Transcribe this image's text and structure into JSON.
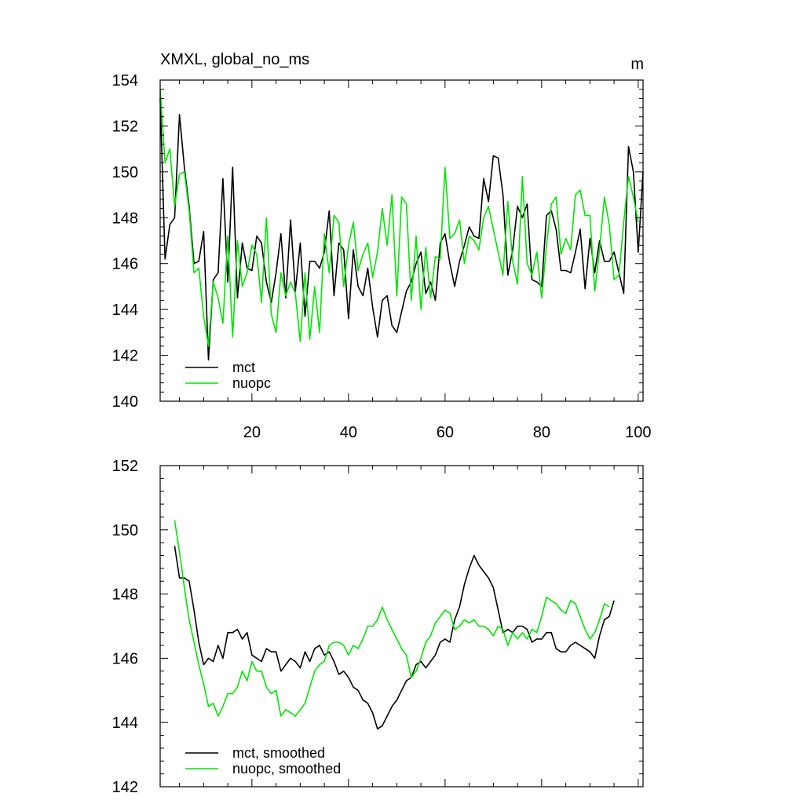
{
  "colors": {
    "mct": "#000000",
    "nuopc": "#00e600"
  },
  "chart_data": [
    {
      "type": "line",
      "title": "XMXL, global_no_ms",
      "units": "m",
      "xlim": [
        1,
        101
      ],
      "ylim": [
        140,
        154
      ],
      "x_ticks": [
        20,
        40,
        60,
        80,
        100
      ],
      "y_ticks": [
        140,
        142,
        144,
        146,
        148,
        150,
        152,
        154
      ],
      "x_start": 1,
      "legend_position": "bottom-left",
      "series": [
        {
          "name": "mct",
          "color_key": "mct",
          "values": [
            153.2,
            146.2,
            147.7,
            148.0,
            152.5,
            150.2,
            148.5,
            146.0,
            146.1,
            147.4,
            141.8,
            145.3,
            145.6,
            149.7,
            145.2,
            150.2,
            144.5,
            146.9,
            145.8,
            145.7,
            147.2,
            146.9,
            145.2,
            144.3,
            145.6,
            147.3,
            144.5,
            147.9,
            144.8,
            146.9,
            143.7,
            146.1,
            146.1,
            145.8,
            146.5,
            148.3,
            144.6,
            146.9,
            146.6,
            143.6,
            146.6,
            145.0,
            144.6,
            145.8,
            144.1,
            142.8,
            144.4,
            144.6,
            143.3,
            143.0,
            143.9,
            144.8,
            145.2,
            146.0,
            146.5,
            144.7,
            145.2,
            144.4,
            146.9,
            147.3,
            146.0,
            145.0,
            146.1,
            146.8,
            147.6,
            147.2,
            147.1,
            149.7,
            148.7,
            150.7,
            150.6,
            149.0,
            145.5,
            146.6,
            148.5,
            148.0,
            148.6,
            145.3,
            145.2,
            145.0,
            148.1,
            148.3,
            147.5,
            145.7,
            145.7,
            145.6,
            146.5,
            147.5,
            144.9,
            147.1,
            145.6,
            147.0,
            146.1,
            146.1,
            146.5,
            145.6,
            144.7,
            151.1,
            150.0,
            146.5,
            150.0
          ]
        },
        {
          "name": "nuopc",
          "color_key": "nuopc",
          "values": [
            153.6,
            150.4,
            151.0,
            148.5,
            149.9,
            150.0,
            148.3,
            145.6,
            145.8,
            143.7,
            142.4,
            145.2,
            144.5,
            143.4,
            147.2,
            142.8,
            147.0,
            145.0,
            145.6,
            146.8,
            146.4,
            144.3,
            148.0,
            143.8,
            143.0,
            145.6,
            144.6,
            145.2,
            144.7,
            142.6,
            145.6,
            142.7,
            145.0,
            143.0,
            147.3,
            145.6,
            148.1,
            147.8,
            145.0,
            146.8,
            147.8,
            145.7,
            146.4,
            146.9,
            145.4,
            146.5,
            148.4,
            146.8,
            149.0,
            144.6,
            148.9,
            148.6,
            144.4,
            147.2,
            144.0,
            146.7,
            144.5,
            146.3,
            146.2,
            150.2,
            147.1,
            147.3,
            147.9,
            146.0,
            147.2,
            147.0,
            146.6,
            148.0,
            148.5,
            147.5,
            146.5,
            145.5,
            148.7,
            146.1,
            145.1,
            149.8,
            146.0,
            145.5,
            146.5,
            144.5,
            146.8,
            148.6,
            148.9,
            146.4,
            147.1,
            146.6,
            149.0,
            149.2,
            148.1,
            148.1,
            144.8,
            146.6,
            148.9,
            147.7,
            145.3,
            145.5,
            147.8,
            149.8,
            148.9,
            147.8
          ]
        }
      ]
    },
    {
      "type": "line",
      "title": "",
      "xlim": [
        1,
        101
      ],
      "ylim": [
        142,
        152
      ],
      "x_ticks": [
        20,
        40,
        60,
        80,
        100
      ],
      "y_ticks": [
        142,
        144,
        146,
        148,
        150,
        152
      ],
      "x_start": 4,
      "legend_position": "bottom-left",
      "series": [
        {
          "name": "mct, smoothed",
          "color_key": "mct",
          "values": [
            149.5,
            148.5,
            148.5,
            148.4,
            147.5,
            146.5,
            145.8,
            146.0,
            145.9,
            146.4,
            146.0,
            146.8,
            146.8,
            146.9,
            146.6,
            146.8,
            146.1,
            146.0,
            145.9,
            146.3,
            146.2,
            146.2,
            145.6,
            145.8,
            146.0,
            145.9,
            145.7,
            146.2,
            145.9,
            146.3,
            146.4,
            146.1,
            146.2,
            145.9,
            145.5,
            145.6,
            145.4,
            145.1,
            145.0,
            144.7,
            144.6,
            144.3,
            143.8,
            143.9,
            144.2,
            144.5,
            144.7,
            145.0,
            145.3,
            145.4,
            145.8,
            145.9,
            145.7,
            145.9,
            146.1,
            146.5,
            146.6,
            146.5,
            147.2,
            147.6,
            148.3,
            148.8,
            149.2,
            148.9,
            148.7,
            148.5,
            148.2,
            147.5,
            146.8,
            146.9,
            146.8,
            147.0,
            147.0,
            146.9,
            146.5,
            146.6,
            146.6,
            146.8,
            146.8,
            146.3,
            146.2,
            146.2,
            146.4,
            146.5,
            146.4,
            146.3,
            146.2,
            146.0,
            146.7,
            147.2,
            147.3,
            147.8
          ]
        },
        {
          "name": "nuopc, smoothed",
          "color_key": "nuopc",
          "values": [
            150.3,
            149.3,
            148.2,
            147.2,
            146.5,
            145.8,
            145.2,
            144.5,
            144.6,
            144.2,
            144.5,
            144.9,
            144.9,
            145.1,
            145.6,
            145.3,
            145.9,
            145.6,
            145.6,
            145.1,
            144.9,
            145.0,
            144.2,
            144.4,
            144.3,
            144.2,
            144.4,
            144.6,
            145.1,
            145.6,
            145.8,
            145.9,
            146.4,
            146.5,
            146.5,
            146.4,
            146.1,
            146.4,
            146.3,
            146.6,
            147.0,
            147.0,
            147.2,
            147.6,
            147.2,
            146.9,
            146.6,
            146.3,
            146.1,
            145.4,
            145.6,
            146.0,
            146.5,
            146.7,
            147.1,
            147.3,
            147.5,
            147.4,
            146.9,
            147.0,
            147.2,
            147.1,
            147.2,
            147.0,
            147.0,
            146.9,
            146.7,
            147.0,
            146.9,
            146.4,
            146.8,
            146.6,
            146.8,
            146.6,
            146.9,
            146.8,
            147.3,
            147.9,
            147.8,
            147.7,
            147.5,
            147.4,
            147.8,
            147.7,
            147.3,
            146.9,
            146.6,
            146.8,
            147.2,
            147.7,
            147.6
          ]
        }
      ]
    }
  ]
}
